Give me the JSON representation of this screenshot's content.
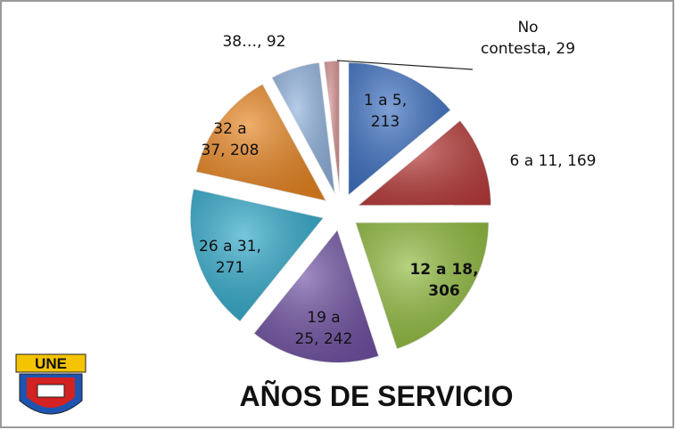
{
  "chart_data": {
    "type": "pie",
    "title": "AÑOS DE SERVICIO",
    "values": [
      213,
      169,
      306,
      242,
      271,
      208,
      92,
      29
    ],
    "value_labels": [
      "1 a 5, 213",
      "6 a 11, 169",
      "12 a 18, 306",
      "19 a 25, 242",
      "26 a 31, 271",
      "32 a 37, 208",
      "38…, 92",
      "No contesta, 29"
    ],
    "colors": [
      "#3b6fc1",
      "#b93c3a",
      "#8fba3c",
      "#6f50a2",
      "#2ea8c9",
      "#e8841f",
      "#8fb1dd",
      "#d99292"
    ]
  },
  "logo": {
    "text": "UNE"
  }
}
